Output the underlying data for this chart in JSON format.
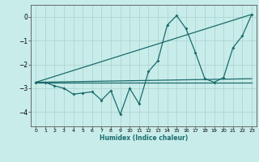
{
  "xlabel": "Humidex (Indice chaleur)",
  "background_color": "#c8ecea",
  "grid_color": "#aed6d2",
  "line_color": "#1a6b6b",
  "xlim": [
    -0.5,
    23.5
  ],
  "ylim": [
    -4.6,
    0.5
  ],
  "yticks": [
    0,
    -1,
    -2,
    -3,
    -4
  ],
  "xticks": [
    0,
    1,
    2,
    3,
    4,
    5,
    6,
    7,
    8,
    9,
    10,
    11,
    12,
    13,
    14,
    15,
    16,
    17,
    18,
    19,
    20,
    21,
    22,
    23
  ],
  "line1_x": [
    0,
    1,
    2,
    3,
    4,
    5,
    6,
    7,
    8,
    9,
    10,
    11,
    12,
    13,
    14,
    15,
    16,
    17,
    18,
    19,
    20,
    21,
    22,
    23
  ],
  "line1_y": [
    -2.75,
    -2.75,
    -2.9,
    -3.0,
    -3.25,
    -3.2,
    -3.15,
    -3.5,
    -3.1,
    -4.1,
    -3.0,
    -3.65,
    -2.3,
    -1.85,
    -0.35,
    0.05,
    -0.5,
    -1.5,
    -2.6,
    -2.75,
    -2.55,
    -1.3,
    -0.8,
    0.1
  ],
  "line2_x": [
    0,
    23
  ],
  "line2_y": [
    -2.75,
    0.1
  ],
  "line3_x": [
    0,
    23
  ],
  "line3_y": [
    -2.75,
    -2.6
  ],
  "line4_x": [
    0,
    23
  ],
  "line4_y": [
    -2.75,
    -2.75
  ]
}
